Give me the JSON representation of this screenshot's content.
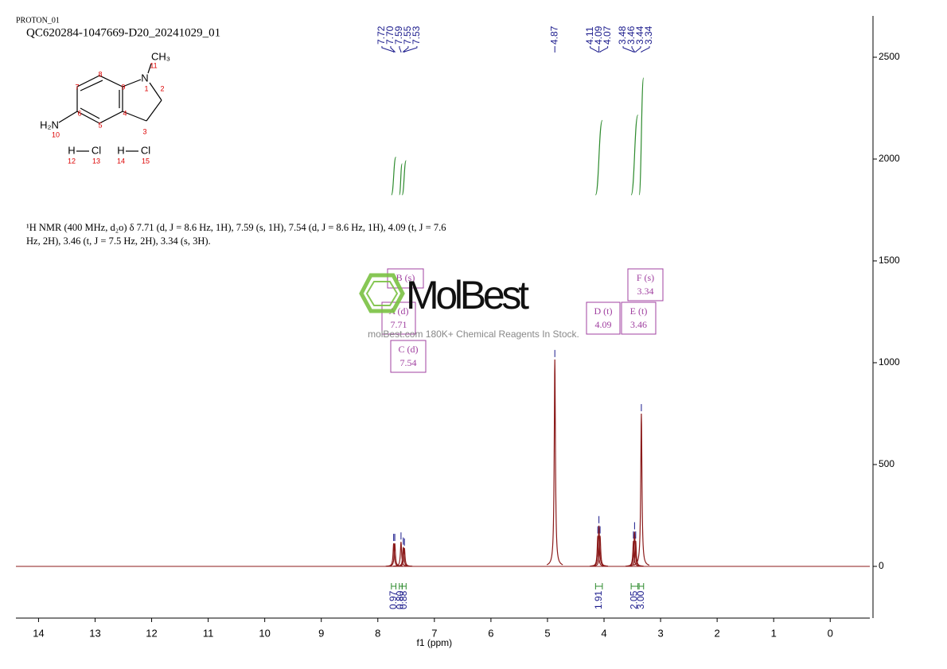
{
  "header": {
    "experiment": "PROTON_01",
    "sample": "QC620284-1047669-D20_20241029_01"
  },
  "structure": {
    "atoms": [
      "CH₃",
      "N",
      "H₂N",
      "H",
      "Cl",
      "H",
      "Cl"
    ],
    "numbers": [
      "11",
      "1",
      "2",
      "3",
      "4",
      "5",
      "6",
      "7",
      "8",
      "9",
      "10",
      "12",
      "13",
      "14",
      "15"
    ]
  },
  "description": "¹H NMR (400 MHz, d₂o) δ 7.71 (d, J = 8.6 Hz, 1H), 7.59 (s, 1H), 7.54 (d, J = 8.6 Hz, 1H), 4.09 (t, J = 7.6 Hz, 2H), 3.46 (t, J = 7.5 Hz, 2H), 3.34 (s, 3H).",
  "watermark": {
    "logo": "MolBest",
    "tagline": "molBest.com 180K+ Chemical Reagents In Stock."
  },
  "chart_data": {
    "type": "nmr",
    "x_label": "f1 (ppm)",
    "xlim": [
      14.4,
      -0.7
    ],
    "xticks": [
      14,
      13,
      12,
      11,
      10,
      9,
      8,
      7,
      6,
      5,
      4,
      3,
      2,
      1,
      0
    ],
    "ylim": [
      -254,
      2703
    ],
    "yticks": [
      0,
      500,
      1000,
      1500,
      2000,
      2500
    ],
    "color": "#8b1a1a",
    "peaks": {
      "x": [
        7.72,
        7.7,
        7.59,
        7.55,
        7.53,
        4.87,
        4.11,
        4.09,
        4.07,
        3.48,
        3.46,
        3.44,
        3.34
      ],
      "values": [
        113,
        113,
        120,
        95,
        90,
        1016,
        150,
        200,
        150,
        125,
        170,
        125,
        750
      ],
      "labels": [
        "7.72",
        "7.70",
        "7.59",
        "7.55",
        "7.53",
        "4.87",
        "4.11",
        "4.09",
        "4.07",
        "3.48",
        "3.46",
        "3.44",
        "3.34"
      ],
      "color": "#1a1a8c"
    },
    "integrals": {
      "from": [
        7.76,
        7.62,
        7.57,
        4.15,
        3.52,
        3.38
      ],
      "to": [
        7.68,
        7.57,
        7.5,
        4.03,
        3.4,
        3.3
      ],
      "values": [
        0.97,
        0.8,
        0.88,
        1.91,
        2.05,
        3
      ],
      "value_labels": [
        "0.97",
        "0.80",
        "0.88",
        "1.91",
        "2.05",
        "3.00"
      ],
      "color": "#2e8b2e"
    },
    "multiplets": [
      {
        "name": "A (d)",
        "shift": "7.71"
      },
      {
        "name": "B (s)"
      },
      {
        "name": "C (d)",
        "shift": "7.54"
      },
      {
        "name": "D (t)",
        "shift": "4.09"
      },
      {
        "name": "E (t)",
        "shift": "3.46"
      },
      {
        "name": "F (s)",
        "shift": "3.34"
      }
    ]
  }
}
